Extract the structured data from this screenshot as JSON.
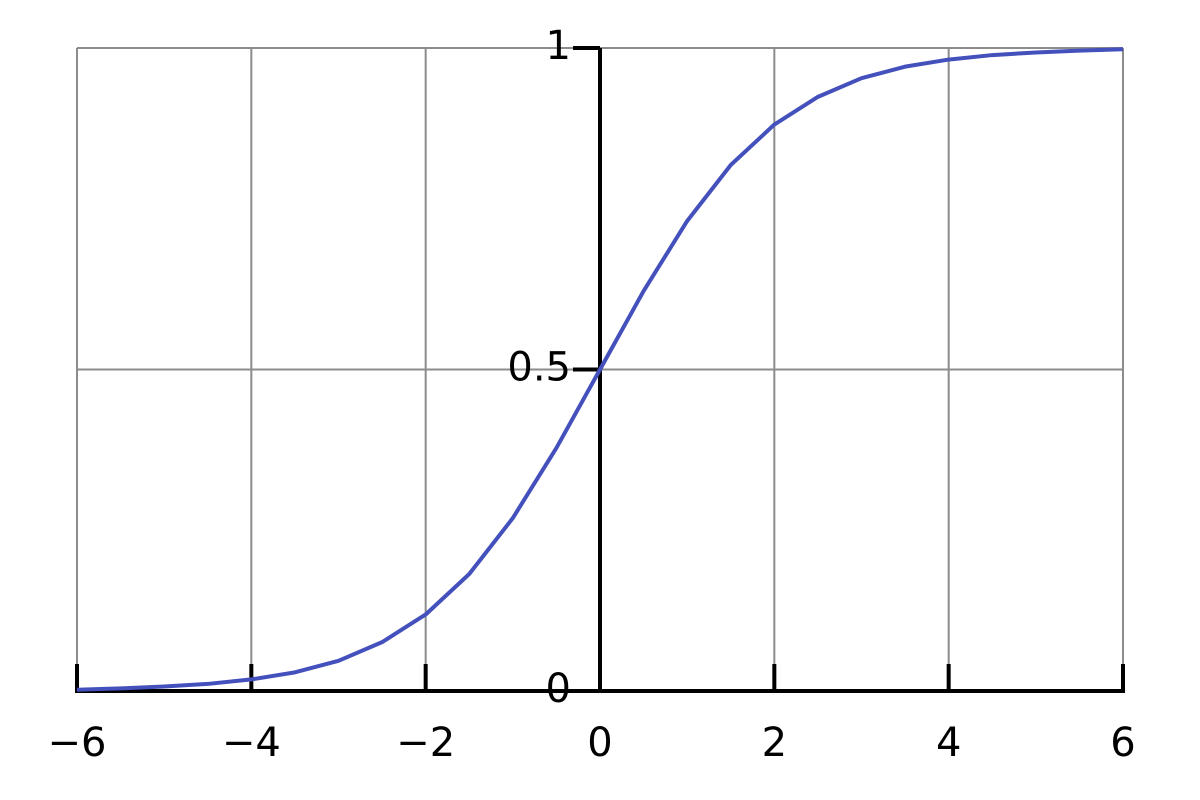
{
  "chart_data": {
    "type": "line",
    "x": [
      -6,
      -5.5,
      -5,
      -4.5,
      -4,
      -3.5,
      -3,
      -2.5,
      -2,
      -1.5,
      -1,
      -0.5,
      0,
      0.5,
      1,
      1.5,
      2,
      2.5,
      3,
      3.5,
      4,
      4.5,
      5,
      5.5,
      6
    ],
    "series": [
      {
        "color": "#4450bc",
        "values": [
          0.002,
          0.004,
          0.007,
          0.011,
          0.018,
          0.029,
          0.047,
          0.076,
          0.119,
          0.182,
          0.269,
          0.378,
          0.5,
          0.622,
          0.731,
          0.818,
          0.881,
          0.924,
          0.953,
          0.971,
          0.982,
          0.989,
          0.993,
          0.996,
          0.998
        ]
      }
    ],
    "xlim": [
      -6,
      6
    ],
    "xticks": [
      {
        "value": -6,
        "label": "−6"
      },
      {
        "value": -4,
        "label": "−4"
      },
      {
        "value": -2,
        "label": "−2"
      },
      0,
      2,
      4,
      6
    ],
    "ylim": [
      0,
      1
    ],
    "yticks": [
      0,
      0.5,
      1
    ],
    "grid": true
  }
}
